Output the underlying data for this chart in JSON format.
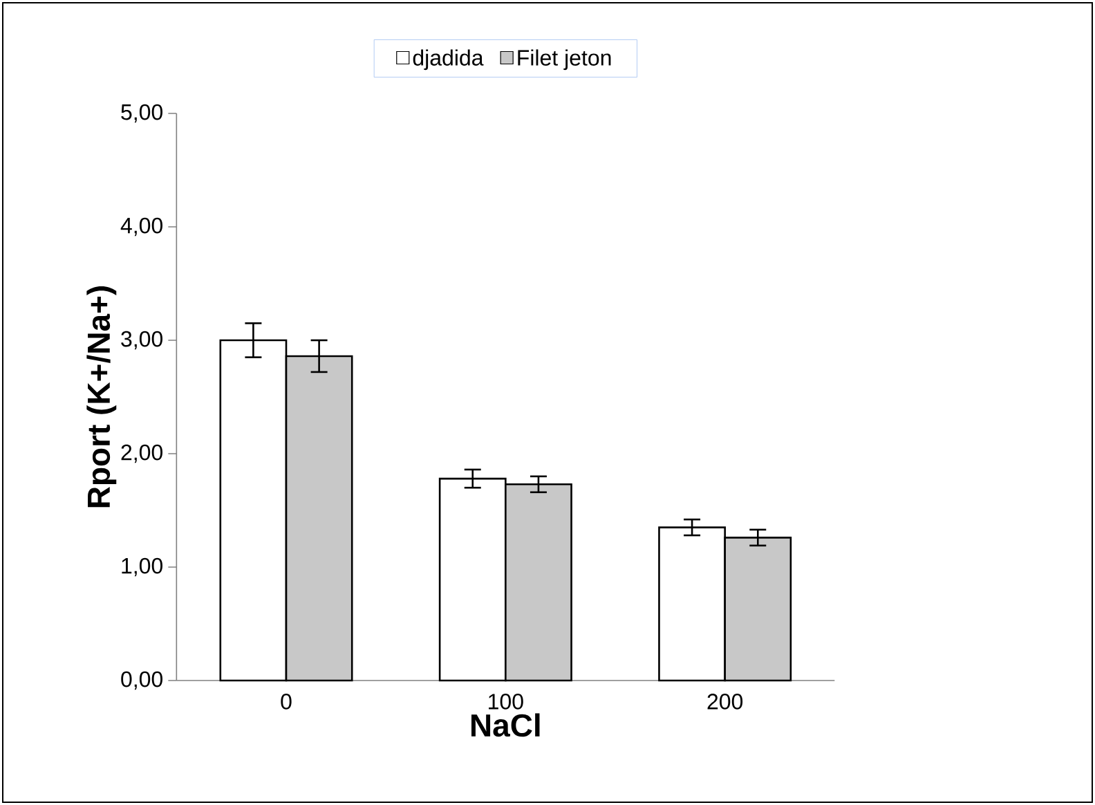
{
  "chart_data": {
    "type": "bar",
    "xlabel": "NaCl",
    "ylabel": "Rport (K+/Na+)",
    "categories": [
      "0",
      "100",
      "200"
    ],
    "series": [
      {
        "name": "djadida",
        "color": "#ffffff",
        "values": [
          3.0,
          1.78,
          1.35
        ],
        "errors": [
          0.15,
          0.08,
          0.07
        ]
      },
      {
        "name": "Filet jeton",
        "color": "#c8c8c8",
        "values": [
          2.86,
          1.73,
          1.26
        ],
        "errors": [
          0.14,
          0.07,
          0.07
        ]
      }
    ],
    "ylim": [
      0,
      5
    ],
    "yticks": [
      {
        "value": 0,
        "label": "0,00"
      },
      {
        "value": 1,
        "label": "1,00"
      },
      {
        "value": 2,
        "label": "2,00"
      },
      {
        "value": 3,
        "label": "3,00"
      },
      {
        "value": 4,
        "label": "4,00"
      },
      {
        "value": 5,
        "label": "5,00"
      }
    ],
    "grid": false,
    "legend": "top"
  }
}
